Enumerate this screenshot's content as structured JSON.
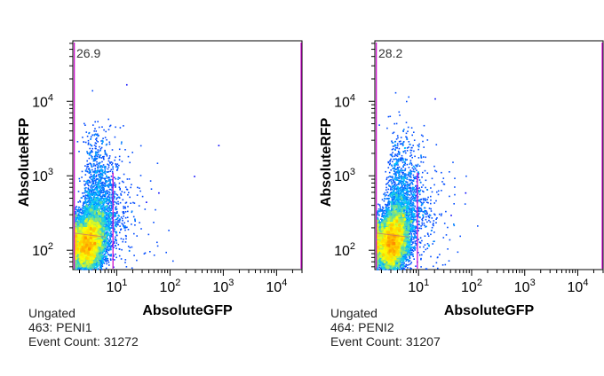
{
  "colors": {
    "gate_line": "#cc00cc",
    "density_low": "#0000ff",
    "density_mid": "#00c8ff",
    "density_high": "#ffff00",
    "density_peak": "#ff8c00"
  },
  "chart_data": [
    {
      "type": "scatter",
      "style": "density-dot-plot",
      "title": "",
      "xlabel": "AbsoluteGFP",
      "ylabel": "AbsoluteRFP",
      "xscale": "log",
      "yscale": "log",
      "xlim": [
        1.5,
        30000
      ],
      "ylim": [
        55,
        65000
      ],
      "x_ticks": [
        10,
        100,
        1000,
        10000
      ],
      "x_tick_labels": [
        {
          "base": "10",
          "exp": "1"
        },
        {
          "base": "10",
          "exp": "2"
        },
        {
          "base": "10",
          "exp": "3"
        },
        {
          "base": "10",
          "exp": "4"
        }
      ],
      "y_ticks": [
        100,
        1000,
        10000
      ],
      "y_tick_labels": [
        {
          "base": "10",
          "exp": "2"
        },
        {
          "base": "10",
          "exp": "3"
        },
        {
          "base": "10",
          "exp": "4"
        }
      ],
      "gate_percent": "26.9",
      "gate_x_bounds": [
        1.6,
        8.5,
        30000
      ],
      "population": {
        "x_center": 2.8,
        "y_center": 120,
        "sample_id": 463
      },
      "sparse_events": [
        {
          "x": 15,
          "y": 17000
        },
        {
          "x": 800,
          "y": 2600
        },
        {
          "x": 280,
          "y": 1000
        },
        {
          "x": 60,
          "y": 600
        },
        {
          "x": 35,
          "y": 450
        }
      ],
      "caption": {
        "gating": "Ungated",
        "sample": "463: PENI1",
        "event_count": "Event Count: 31272"
      }
    },
    {
      "type": "scatter",
      "style": "density-dot-plot",
      "title": "",
      "xlabel": "AbsoluteGFP",
      "ylabel": "AbsoluteRFP",
      "xscale": "log",
      "yscale": "log",
      "xlim": [
        1.5,
        30000
      ],
      "ylim": [
        55,
        65000
      ],
      "x_ticks": [
        10,
        100,
        1000,
        10000
      ],
      "x_tick_labels": [
        {
          "base": "10",
          "exp": "1"
        },
        {
          "base": "10",
          "exp": "2"
        },
        {
          "base": "10",
          "exp": "3"
        },
        {
          "base": "10",
          "exp": "4"
        }
      ],
      "y_ticks": [
        100,
        1000,
        10000
      ],
      "y_tick_labels": [
        {
          "base": "10",
          "exp": "2"
        },
        {
          "base": "10",
          "exp": "3"
        },
        {
          "base": "10",
          "exp": "4"
        }
      ],
      "gate_percent": "28.2",
      "gate_x_bounds": [
        1.6,
        9.5,
        30000
      ],
      "population": {
        "x_center": 3.0,
        "y_center": 125,
        "sample_id": 464
      },
      "sparse_events": [
        {
          "x": 20,
          "y": 11000
        },
        {
          "x": 75,
          "y": 600
        },
        {
          "x": 40,
          "y": 300
        }
      ],
      "caption": {
        "gating": "Ungated",
        "sample": "464: PENI2",
        "event_count": "Event Count: 31207"
      }
    }
  ]
}
